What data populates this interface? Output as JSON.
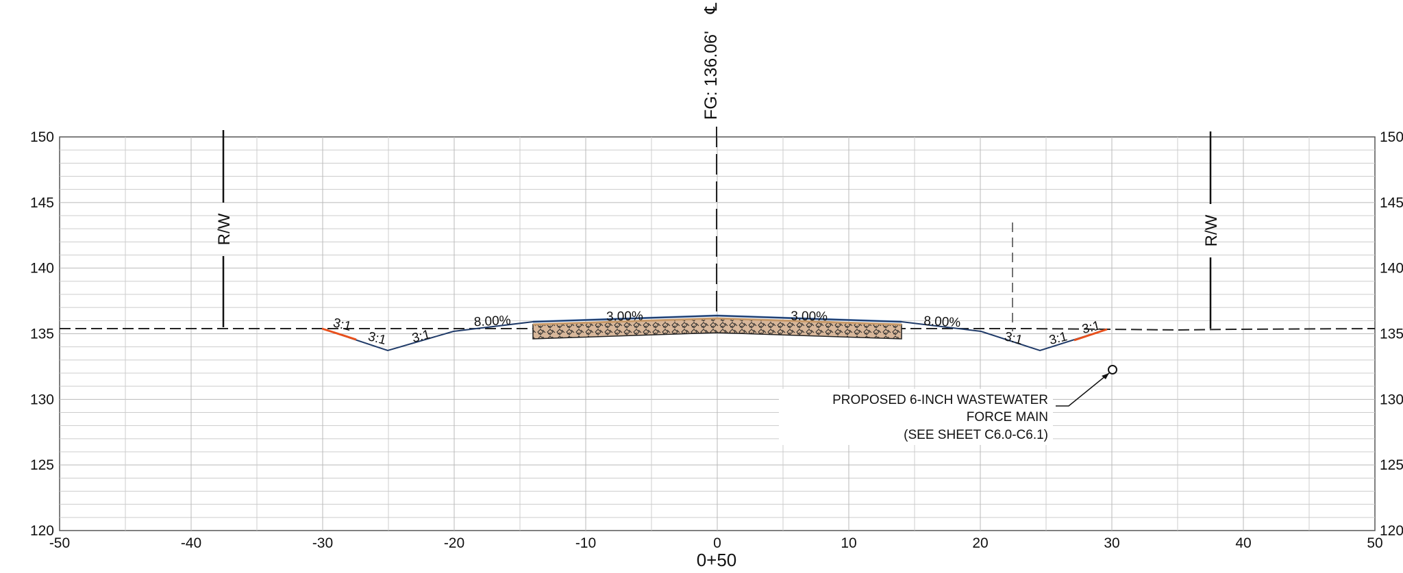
{
  "drawing": {
    "x_axis": {
      "min": -50,
      "max": 50,
      "ticks": [
        "-50",
        "-40",
        "-30",
        "-20",
        "-10",
        "0",
        "10",
        "20",
        "30",
        "40",
        "50"
      ]
    },
    "y_axis": {
      "min": 120,
      "max": 150,
      "ticks": [
        "120",
        "125",
        "130",
        "135",
        "140",
        "145",
        "150"
      ]
    },
    "station_label": "0+50",
    "centerline_label": "FG: 136.06'",
    "centerline_symbol": "℄",
    "row_left_label": "R/W",
    "row_right_label": "R/W",
    "slope_labels": {
      "left_3": "3:1",
      "left_2": "3:1",
      "left_1": "3:1",
      "right_1": "3:1",
      "right_2": "3:1",
      "right_3": "3:1",
      "left_shoulder": "8.00%",
      "right_shoulder": "8.00%",
      "left_lane": "3.00%",
      "right_lane": "3.00%"
    },
    "callout": {
      "line1": "PROPOSED 6-INCH WASTEWATER",
      "line2": "FORCE MAIN",
      "line3": "(SEE SHEET C6.0-C6.1)"
    },
    "colors": {
      "grid_major": "#b9b9b9",
      "grid_minor": "#cccccc",
      "finished_grade": "#1f3a68",
      "surface_blue": "#6b9ad6",
      "cut_slope": "#e8501c",
      "pavement_fill": "#c89a6a"
    }
  }
}
